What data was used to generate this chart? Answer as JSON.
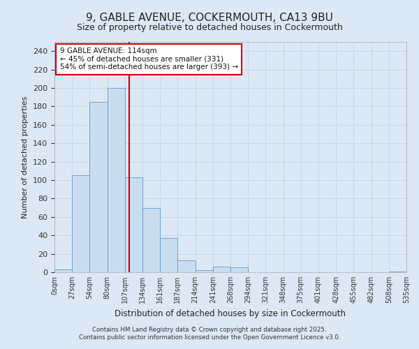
{
  "title1": "9, GABLE AVENUE, COCKERMOUTH, CA13 9BU",
  "title2": "Size of property relative to detached houses in Cockermouth",
  "xlabel": "Distribution of detached houses by size in Cockermouth",
  "ylabel": "Number of detached properties",
  "bin_labels": [
    "0sqm",
    "27sqm",
    "54sqm",
    "80sqm",
    "107sqm",
    "134sqm",
    "161sqm",
    "187sqm",
    "214sqm",
    "241sqm",
    "268sqm",
    "294sqm",
    "321sqm",
    "348sqm",
    "375sqm",
    "401sqm",
    "428sqm",
    "455sqm",
    "482sqm",
    "508sqm",
    "535sqm"
  ],
  "bar_values": [
    3,
    105,
    185,
    200,
    103,
    70,
    37,
    13,
    2,
    6,
    5,
    0,
    0,
    0,
    0,
    0,
    0,
    0,
    0,
    1
  ],
  "bar_color": "#c9ddf0",
  "bar_edge_color": "#6699cc",
  "vline_color": "#cc0000",
  "annotation_text": "9 GABLE AVENUE: 114sqm\n← 45% of detached houses are smaller (331)\n54% of semi-detached houses are larger (393) →",
  "annotation_box_color": "#ffffff",
  "annotation_box_edge": "#cc0000",
  "ylim": [
    0,
    250
  ],
  "yticks": [
    0,
    20,
    40,
    60,
    80,
    100,
    120,
    140,
    160,
    180,
    200,
    220,
    240
  ],
  "background_color": "#dce8f5",
  "plot_bg_color": "#ffffff",
  "footer1": "Contains HM Land Registry data © Crown copyright and database right 2025.",
  "footer2": "Contains public sector information licensed under the Open Government Licence v3.0.",
  "title1_fontsize": 11,
  "title2_fontsize": 9,
  "grid_color": "#c8d8e8"
}
